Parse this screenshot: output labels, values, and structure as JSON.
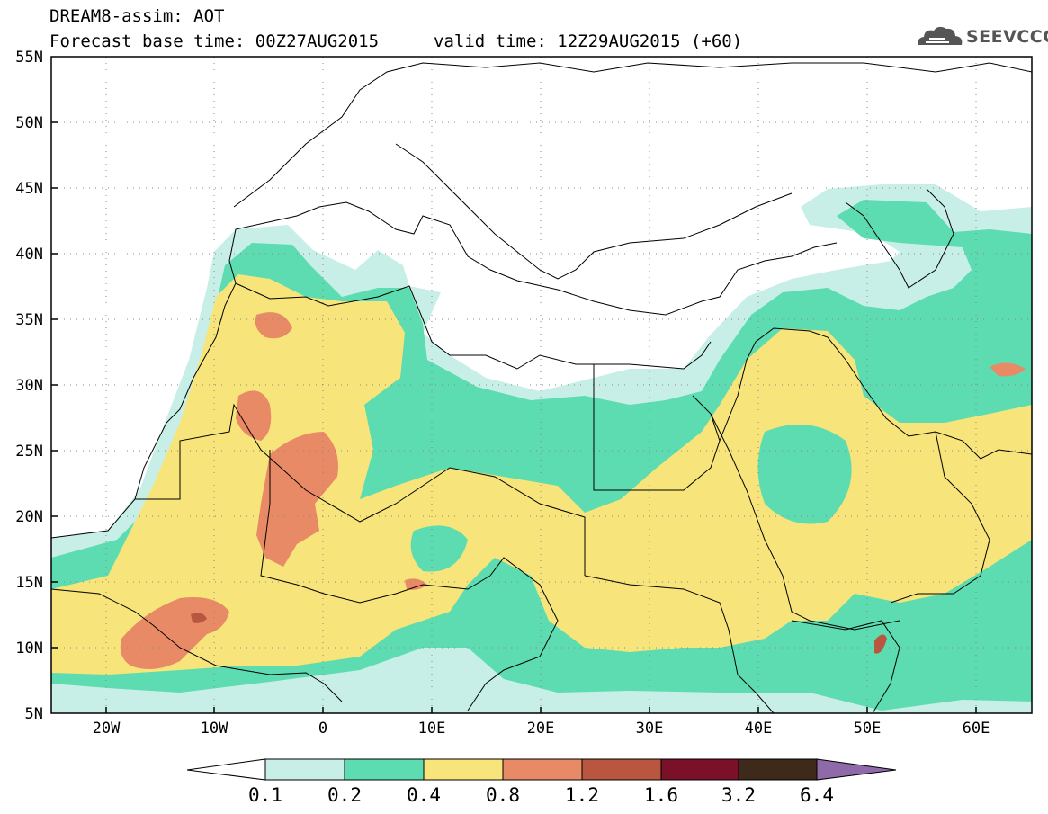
{
  "title": {
    "line1": "DREAM8-assim: AOT",
    "line2": "Forecast base time: 00Z27AUG2015",
    "valid": "valid time: 12Z29AUG2015 (+60)"
  },
  "logo": {
    "text": "SEEVCCC",
    "icon": "cloud-icon"
  },
  "map": {
    "variable": "AOT",
    "lat_range": [
      5,
      55
    ],
    "lon_range": [
      -25,
      65
    ],
    "grid": "dotted",
    "lat_labels": [
      "55N",
      "50N",
      "45N",
      "40N",
      "35N",
      "30N",
      "25N",
      "20N",
      "15N",
      "10N",
      "5N"
    ],
    "lon_labels": [
      "20W",
      "10W",
      "0",
      "10E",
      "20E",
      "30E",
      "40E",
      "50E",
      "60E"
    ]
  },
  "colorbar": {
    "levels": [
      "0.1",
      "0.2",
      "0.4",
      "0.8",
      "1.2",
      "1.6",
      "3.2",
      "6.4"
    ],
    "colors": [
      "#ffffff",
      "#c8efe7",
      "#5cdcb0",
      "#f7e47a",
      "#e98a66",
      "#b8563f",
      "#7a1128",
      "#3e2a1a",
      "#8e6aa8"
    ]
  }
}
